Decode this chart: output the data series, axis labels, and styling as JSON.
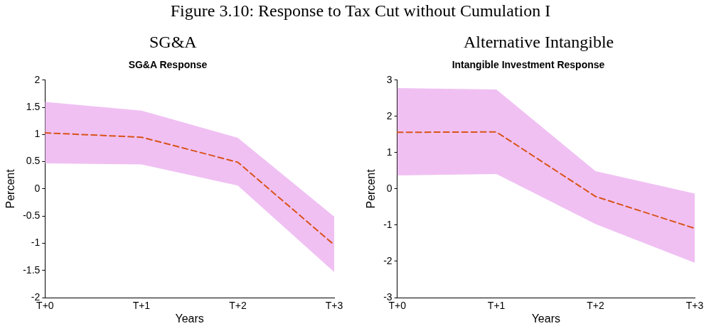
{
  "chart_data": [
    {
      "type": "line",
      "title": "SG&A",
      "subtitle": "SG&A Response",
      "xlabel": "Years",
      "ylabel": "Percent",
      "annotations": [
        "Figure 3.10: Response to Tax Cut without Cumulation I"
      ],
      "categories": [
        "T+0",
        "T+1",
        "T+2",
        "T+3"
      ],
      "ylim": [
        -2,
        2
      ],
      "yticks": [
        -2,
        -1.5,
        -1,
        -0.5,
        0,
        0.5,
        1,
        1.5,
        2
      ],
      "grid": false,
      "line_style": "dashed",
      "marker": "none",
      "series": [
        {
          "color": "#d95319",
          "values": [
            1.03,
            0.95,
            0.49,
            -1.03
          ],
          "lower": [
            0.47,
            0.45,
            0.06,
            -1.53
          ],
          "upper": [
            1.6,
            1.44,
            0.94,
            -0.51
          ]
        }
      ]
    },
    {
      "type": "line",
      "title": "Alternative Intangible",
      "subtitle": "Intangible Investment Response",
      "xlabel": "Years",
      "ylabel": "Percent",
      "categories": [
        "T+0",
        "T+1",
        "T+2",
        "T+3"
      ],
      "ylim": [
        -3,
        3
      ],
      "yticks": [
        -3,
        -2,
        -1,
        0,
        1,
        2,
        3
      ],
      "grid": false,
      "line_style": "dashed",
      "marker": "none",
      "series": [
        {
          "color": "#d95319",
          "values": [
            1.56,
            1.57,
            -0.21,
            -1.09
          ],
          "lower": [
            0.37,
            0.41,
            -0.97,
            -2.04
          ],
          "upper": [
            2.78,
            2.74,
            0.49,
            -0.13
          ]
        }
      ]
    }
  ]
}
